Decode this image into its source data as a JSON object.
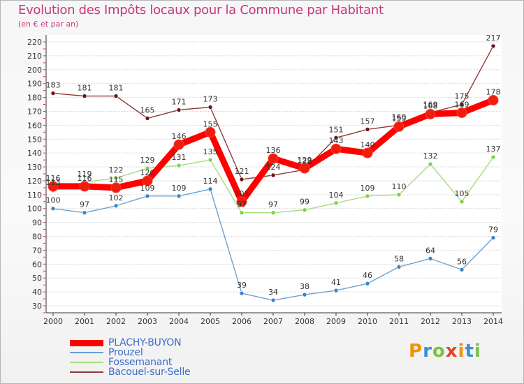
{
  "header": {
    "title": "Evolution des Impôts locaux pour la Commune par Habitant",
    "subtitle": "(en € et par an)"
  },
  "chart_data": {
    "type": "line",
    "title": "Evolution des Impôts locaux pour la Commune par Habitant",
    "subtitle": "(en € et par an)",
    "xlabel": "",
    "ylabel": "",
    "x": [
      2000,
      2001,
      2002,
      2003,
      2004,
      2005,
      2006,
      2007,
      2008,
      2009,
      2010,
      2011,
      2012,
      2013,
      2014
    ],
    "ylim": [
      30,
      220
    ],
    "yticks": [
      30,
      40,
      50,
      60,
      70,
      80,
      90,
      100,
      110,
      120,
      130,
      140,
      150,
      160,
      170,
      180,
      190,
      200,
      210,
      220
    ],
    "grid": "horizontal",
    "legend_position": "bottom-left",
    "series": [
      {
        "name": "PLACHY-BUYON",
        "color": "#ff0000",
        "marker": "#ee1d0e",
        "values": [
          116,
          116,
          115,
          120,
          146,
          155,
          105,
          136,
          129,
          143,
          140,
          159,
          168,
          169,
          178
        ]
      },
      {
        "name": "Prouzel",
        "color": "#6ea1cf",
        "marker": "#3f84c3",
        "values": [
          100,
          97,
          102,
          109,
          109,
          114,
          39,
          34,
          38,
          41,
          46,
          58,
          64,
          56,
          79
        ]
      },
      {
        "name": "Fossemanant",
        "color": "#a8dc7a",
        "marker": "#7bd34c",
        "values": [
          113,
          119,
          122,
          129,
          131,
          135,
          97,
          97,
          99,
          104,
          109,
          110,
          132,
          105,
          137
        ]
      },
      {
        "name": "Bacouel-sur-Selle",
        "color": "#8c3a3a",
        "marker": "#6b1414",
        "values": [
          183,
          181,
          181,
          165,
          171,
          173,
          121,
          124,
          128,
          151,
          157,
          160,
          169,
          175,
          217
        ]
      }
    ]
  },
  "legend": {
    "items": [
      {
        "label": "PLACHY-BUYON",
        "color": "#ff0000",
        "thickness": "thick"
      },
      {
        "label": "Prouzel",
        "color": "#6ea1cf",
        "thickness": "thin"
      },
      {
        "label": "Fossemanant",
        "color": "#a8dc7a",
        "thickness": "thin"
      },
      {
        "label": "Bacouel-sur-Selle",
        "color": "#8c3a3a",
        "thickness": "thin"
      }
    ]
  },
  "brand": {
    "letters": [
      "P",
      "r",
      "o",
      "x",
      "i",
      "t",
      "i"
    ],
    "colors": [
      "#f29400",
      "#3c8fd4",
      "#7cc242",
      "#e2432f",
      "#f29400",
      "#3c8fd4",
      "#7cc242"
    ]
  }
}
